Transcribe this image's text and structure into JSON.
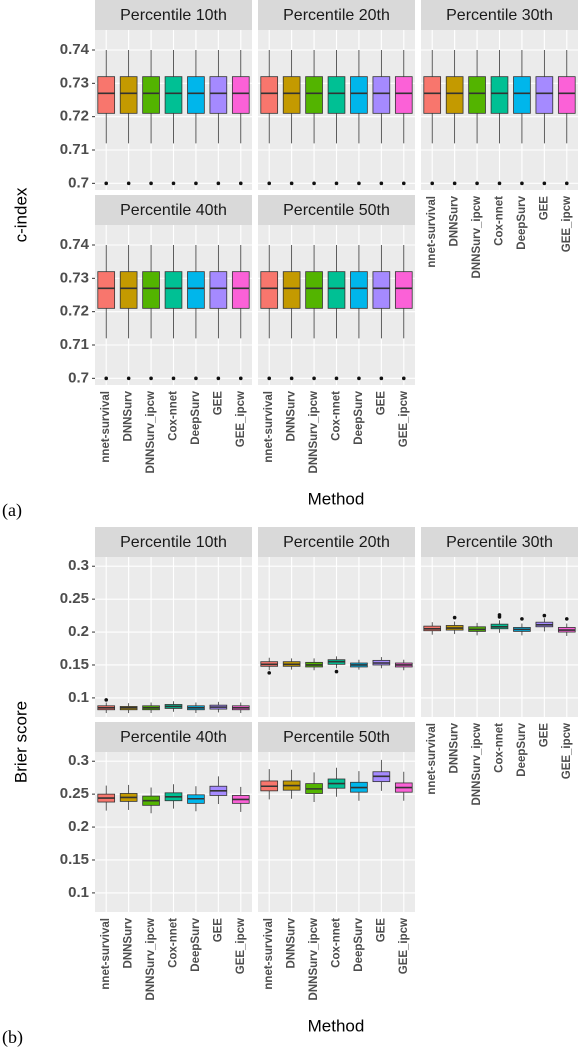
{
  "chart_data": [
    {
      "type": "boxplot",
      "panel_label": "(a)",
      "ylabel": "c-index",
      "xlabel": "Method",
      "categories": [
        "nnet-survival",
        "DNNSurv",
        "DNNSurv_ipcw",
        "Cox-nnet",
        "DeepSurv",
        "GEE",
        "GEE_ipcw"
      ],
      "colors": [
        "#F8766D",
        "#C49A00",
        "#53B400",
        "#00C094",
        "#00B6EB",
        "#A58AFF",
        "#FB61D7"
      ],
      "ylim": [
        0.698,
        0.746
      ],
      "yticks": [
        0.7,
        0.71,
        0.72,
        0.73,
        0.74
      ],
      "grid": true,
      "facets": [
        {
          "title": "Percentile 10th",
          "boxes": [
            {
              "min": 0.712,
              "q1": 0.721,
              "median": 0.727,
              "q3": 0.732,
              "max": 0.74,
              "outliers": [
                0.7
              ]
            },
            {
              "min": 0.712,
              "q1": 0.721,
              "median": 0.727,
              "q3": 0.732,
              "max": 0.74,
              "outliers": [
                0.7
              ]
            },
            {
              "min": 0.712,
              "q1": 0.721,
              "median": 0.727,
              "q3": 0.732,
              "max": 0.74,
              "outliers": [
                0.7
              ]
            },
            {
              "min": 0.712,
              "q1": 0.721,
              "median": 0.727,
              "q3": 0.732,
              "max": 0.74,
              "outliers": [
                0.7
              ]
            },
            {
              "min": 0.712,
              "q1": 0.721,
              "median": 0.727,
              "q3": 0.732,
              "max": 0.74,
              "outliers": [
                0.7
              ]
            },
            {
              "min": 0.712,
              "q1": 0.721,
              "median": 0.727,
              "q3": 0.732,
              "max": 0.74,
              "outliers": [
                0.7
              ]
            },
            {
              "min": 0.712,
              "q1": 0.721,
              "median": 0.727,
              "q3": 0.732,
              "max": 0.74,
              "outliers": [
                0.7
              ]
            }
          ]
        },
        {
          "title": "Percentile 20th",
          "boxes": [
            {
              "min": 0.712,
              "q1": 0.721,
              "median": 0.727,
              "q3": 0.732,
              "max": 0.74,
              "outliers": [
                0.7
              ]
            },
            {
              "min": 0.712,
              "q1": 0.721,
              "median": 0.727,
              "q3": 0.732,
              "max": 0.74,
              "outliers": [
                0.7
              ]
            },
            {
              "min": 0.712,
              "q1": 0.721,
              "median": 0.727,
              "q3": 0.732,
              "max": 0.74,
              "outliers": [
                0.7
              ]
            },
            {
              "min": 0.712,
              "q1": 0.721,
              "median": 0.727,
              "q3": 0.732,
              "max": 0.74,
              "outliers": [
                0.7
              ]
            },
            {
              "min": 0.712,
              "q1": 0.721,
              "median": 0.727,
              "q3": 0.732,
              "max": 0.74,
              "outliers": [
                0.7
              ]
            },
            {
              "min": 0.712,
              "q1": 0.721,
              "median": 0.727,
              "q3": 0.732,
              "max": 0.74,
              "outliers": [
                0.7
              ]
            },
            {
              "min": 0.712,
              "q1": 0.721,
              "median": 0.727,
              "q3": 0.732,
              "max": 0.74,
              "outliers": [
                0.7
              ]
            }
          ]
        },
        {
          "title": "Percentile 30th",
          "boxes": [
            {
              "min": 0.712,
              "q1": 0.721,
              "median": 0.727,
              "q3": 0.732,
              "max": 0.74,
              "outliers": [
                0.7
              ]
            },
            {
              "min": 0.712,
              "q1": 0.721,
              "median": 0.727,
              "q3": 0.732,
              "max": 0.74,
              "outliers": [
                0.7
              ]
            },
            {
              "min": 0.712,
              "q1": 0.721,
              "median": 0.727,
              "q3": 0.732,
              "max": 0.74,
              "outliers": [
                0.7
              ]
            },
            {
              "min": 0.712,
              "q1": 0.721,
              "median": 0.727,
              "q3": 0.732,
              "max": 0.74,
              "outliers": [
                0.7
              ]
            },
            {
              "min": 0.712,
              "q1": 0.721,
              "median": 0.727,
              "q3": 0.732,
              "max": 0.74,
              "outliers": [
                0.7
              ]
            },
            {
              "min": 0.712,
              "q1": 0.721,
              "median": 0.727,
              "q3": 0.732,
              "max": 0.74,
              "outliers": [
                0.7
              ]
            },
            {
              "min": 0.712,
              "q1": 0.721,
              "median": 0.727,
              "q3": 0.732,
              "max": 0.74,
              "outliers": [
                0.7
              ]
            }
          ]
        },
        {
          "title": "Percentile 40th",
          "boxes": [
            {
              "min": 0.712,
              "q1": 0.721,
              "median": 0.727,
              "q3": 0.732,
              "max": 0.74,
              "outliers": [
                0.7
              ]
            },
            {
              "min": 0.712,
              "q1": 0.721,
              "median": 0.727,
              "q3": 0.732,
              "max": 0.74,
              "outliers": [
                0.7
              ]
            },
            {
              "min": 0.712,
              "q1": 0.721,
              "median": 0.727,
              "q3": 0.732,
              "max": 0.74,
              "outliers": [
                0.7
              ]
            },
            {
              "min": 0.712,
              "q1": 0.721,
              "median": 0.727,
              "q3": 0.732,
              "max": 0.74,
              "outliers": [
                0.7
              ]
            },
            {
              "min": 0.712,
              "q1": 0.721,
              "median": 0.727,
              "q3": 0.732,
              "max": 0.74,
              "outliers": [
                0.7
              ]
            },
            {
              "min": 0.712,
              "q1": 0.721,
              "median": 0.727,
              "q3": 0.732,
              "max": 0.74,
              "outliers": [
                0.7
              ]
            },
            {
              "min": 0.712,
              "q1": 0.721,
              "median": 0.727,
              "q3": 0.732,
              "max": 0.74,
              "outliers": [
                0.7
              ]
            }
          ]
        },
        {
          "title": "Percentile 50th",
          "boxes": [
            {
              "min": 0.712,
              "q1": 0.721,
              "median": 0.727,
              "q3": 0.732,
              "max": 0.74,
              "outliers": [
                0.7
              ]
            },
            {
              "min": 0.712,
              "q1": 0.721,
              "median": 0.727,
              "q3": 0.732,
              "max": 0.74,
              "outliers": [
                0.7
              ]
            },
            {
              "min": 0.712,
              "q1": 0.721,
              "median": 0.727,
              "q3": 0.732,
              "max": 0.74,
              "outliers": [
                0.7
              ]
            },
            {
              "min": 0.712,
              "q1": 0.721,
              "median": 0.727,
              "q3": 0.732,
              "max": 0.74,
              "outliers": [
                0.7
              ]
            },
            {
              "min": 0.712,
              "q1": 0.721,
              "median": 0.727,
              "q3": 0.732,
              "max": 0.74,
              "outliers": [
                0.7
              ]
            },
            {
              "min": 0.712,
              "q1": 0.721,
              "median": 0.727,
              "q3": 0.732,
              "max": 0.74,
              "outliers": [
                0.7
              ]
            },
            {
              "min": 0.712,
              "q1": 0.721,
              "median": 0.727,
              "q3": 0.732,
              "max": 0.74,
              "outliers": [
                0.7
              ]
            }
          ]
        }
      ]
    },
    {
      "type": "boxplot",
      "panel_label": "(b)",
      "ylabel": "Brier score",
      "xlabel": "Method",
      "categories": [
        "nnet-survival",
        "DNNSurv",
        "DNNSurv_ipcw",
        "Cox-nnet",
        "DeepSurv",
        "GEE",
        "GEE_ipcw"
      ],
      "colors": [
        "#F8766D",
        "#C49A00",
        "#53B400",
        "#00C094",
        "#00B6EB",
        "#A58AFF",
        "#FB61D7"
      ],
      "ylim": [
        0.071,
        0.314
      ],
      "yticks": [
        0.1,
        0.15,
        0.2,
        0.25,
        0.3
      ],
      "grid": true,
      "facets": [
        {
          "title": "Percentile 10th",
          "boxes": [
            {
              "min": 0.077,
              "q1": 0.082,
              "median": 0.085,
              "q3": 0.088,
              "max": 0.093,
              "outliers": [
                0.097
              ]
            },
            {
              "min": 0.077,
              "q1": 0.082,
              "median": 0.085,
              "q3": 0.087,
              "max": 0.092,
              "outliers": []
            },
            {
              "min": 0.077,
              "q1": 0.082,
              "median": 0.085,
              "q3": 0.088,
              "max": 0.093,
              "outliers": []
            },
            {
              "min": 0.079,
              "q1": 0.084,
              "median": 0.087,
              "q3": 0.09,
              "max": 0.095,
              "outliers": []
            },
            {
              "min": 0.077,
              "q1": 0.082,
              "median": 0.085,
              "q3": 0.088,
              "max": 0.093,
              "outliers": []
            },
            {
              "min": 0.078,
              "q1": 0.083,
              "median": 0.086,
              "q3": 0.089,
              "max": 0.094,
              "outliers": []
            },
            {
              "min": 0.077,
              "q1": 0.082,
              "median": 0.085,
              "q3": 0.088,
              "max": 0.093,
              "outliers": []
            }
          ]
        },
        {
          "title": "Percentile 20th",
          "boxes": [
            {
              "min": 0.142,
              "q1": 0.148,
              "median": 0.151,
              "q3": 0.155,
              "max": 0.161,
              "outliers": [
                0.138
              ]
            },
            {
              "min": 0.143,
              "q1": 0.148,
              "median": 0.151,
              "q3": 0.155,
              "max": 0.16,
              "outliers": []
            },
            {
              "min": 0.142,
              "q1": 0.147,
              "median": 0.15,
              "q3": 0.154,
              "max": 0.16,
              "outliers": []
            },
            {
              "min": 0.145,
              "q1": 0.151,
              "median": 0.155,
              "q3": 0.158,
              "max": 0.163,
              "outliers": [
                0.14
              ]
            },
            {
              "min": 0.143,
              "q1": 0.147,
              "median": 0.15,
              "q3": 0.153,
              "max": 0.158,
              "outliers": []
            },
            {
              "min": 0.145,
              "q1": 0.15,
              "median": 0.153,
              "q3": 0.157,
              "max": 0.162,
              "outliers": []
            },
            {
              "min": 0.142,
              "q1": 0.147,
              "median": 0.15,
              "q3": 0.153,
              "max": 0.158,
              "outliers": []
            }
          ]
        },
        {
          "title": "Percentile 30th",
          "boxes": [
            {
              "min": 0.196,
              "q1": 0.202,
              "median": 0.205,
              "q3": 0.209,
              "max": 0.215,
              "outliers": []
            },
            {
              "min": 0.197,
              "q1": 0.203,
              "median": 0.206,
              "q3": 0.21,
              "max": 0.216,
              "outliers": [
                0.222
              ]
            },
            {
              "min": 0.195,
              "q1": 0.201,
              "median": 0.204,
              "q3": 0.208,
              "max": 0.214,
              "outliers": []
            },
            {
              "min": 0.199,
              "q1": 0.205,
              "median": 0.208,
              "q3": 0.212,
              "max": 0.218,
              "outliers": [
                0.223,
                0.226
              ]
            },
            {
              "min": 0.195,
              "q1": 0.201,
              "median": 0.204,
              "q3": 0.207,
              "max": 0.213,
              "outliers": [
                0.22
              ]
            },
            {
              "min": 0.201,
              "q1": 0.208,
              "median": 0.211,
              "q3": 0.215,
              "max": 0.221,
              "outliers": [
                0.225
              ]
            },
            {
              "min": 0.194,
              "q1": 0.2,
              "median": 0.203,
              "q3": 0.207,
              "max": 0.213,
              "outliers": [
                0.22
              ]
            }
          ]
        },
        {
          "title": "Percentile 40th",
          "boxes": [
            {
              "min": 0.225,
              "q1": 0.238,
              "median": 0.244,
              "q3": 0.25,
              "max": 0.263,
              "outliers": []
            },
            {
              "min": 0.226,
              "q1": 0.239,
              "median": 0.245,
              "q3": 0.251,
              "max": 0.264,
              "outliers": []
            },
            {
              "min": 0.221,
              "q1": 0.233,
              "median": 0.24,
              "q3": 0.247,
              "max": 0.26,
              "outliers": []
            },
            {
              "min": 0.228,
              "q1": 0.24,
              "median": 0.246,
              "q3": 0.252,
              "max": 0.265,
              "outliers": []
            },
            {
              "min": 0.224,
              "q1": 0.236,
              "median": 0.243,
              "q3": 0.249,
              "max": 0.262,
              "outliers": []
            },
            {
              "min": 0.235,
              "q1": 0.248,
              "median": 0.255,
              "q3": 0.262,
              "max": 0.277,
              "outliers": []
            },
            {
              "min": 0.223,
              "q1": 0.236,
              "median": 0.242,
              "q3": 0.248,
              "max": 0.261,
              "outliers": []
            }
          ]
        },
        {
          "title": "Percentile 50th",
          "boxes": [
            {
              "min": 0.242,
              "q1": 0.255,
              "median": 0.262,
              "q3": 0.27,
              "max": 0.288,
              "outliers": []
            },
            {
              "min": 0.243,
              "q1": 0.256,
              "median": 0.263,
              "q3": 0.27,
              "max": 0.287,
              "outliers": []
            },
            {
              "min": 0.238,
              "q1": 0.251,
              "median": 0.258,
              "q3": 0.266,
              "max": 0.283,
              "outliers": []
            },
            {
              "min": 0.246,
              "q1": 0.259,
              "median": 0.266,
              "q3": 0.273,
              "max": 0.29,
              "outliers": []
            },
            {
              "min": 0.24,
              "q1": 0.253,
              "median": 0.26,
              "q3": 0.268,
              "max": 0.285,
              "outliers": []
            },
            {
              "min": 0.255,
              "q1": 0.269,
              "median": 0.277,
              "q3": 0.284,
              "max": 0.302,
              "outliers": []
            },
            {
              "min": 0.24,
              "q1": 0.253,
              "median": 0.26,
              "q3": 0.267,
              "max": 0.284,
              "outliers": []
            }
          ]
        }
      ]
    }
  ]
}
